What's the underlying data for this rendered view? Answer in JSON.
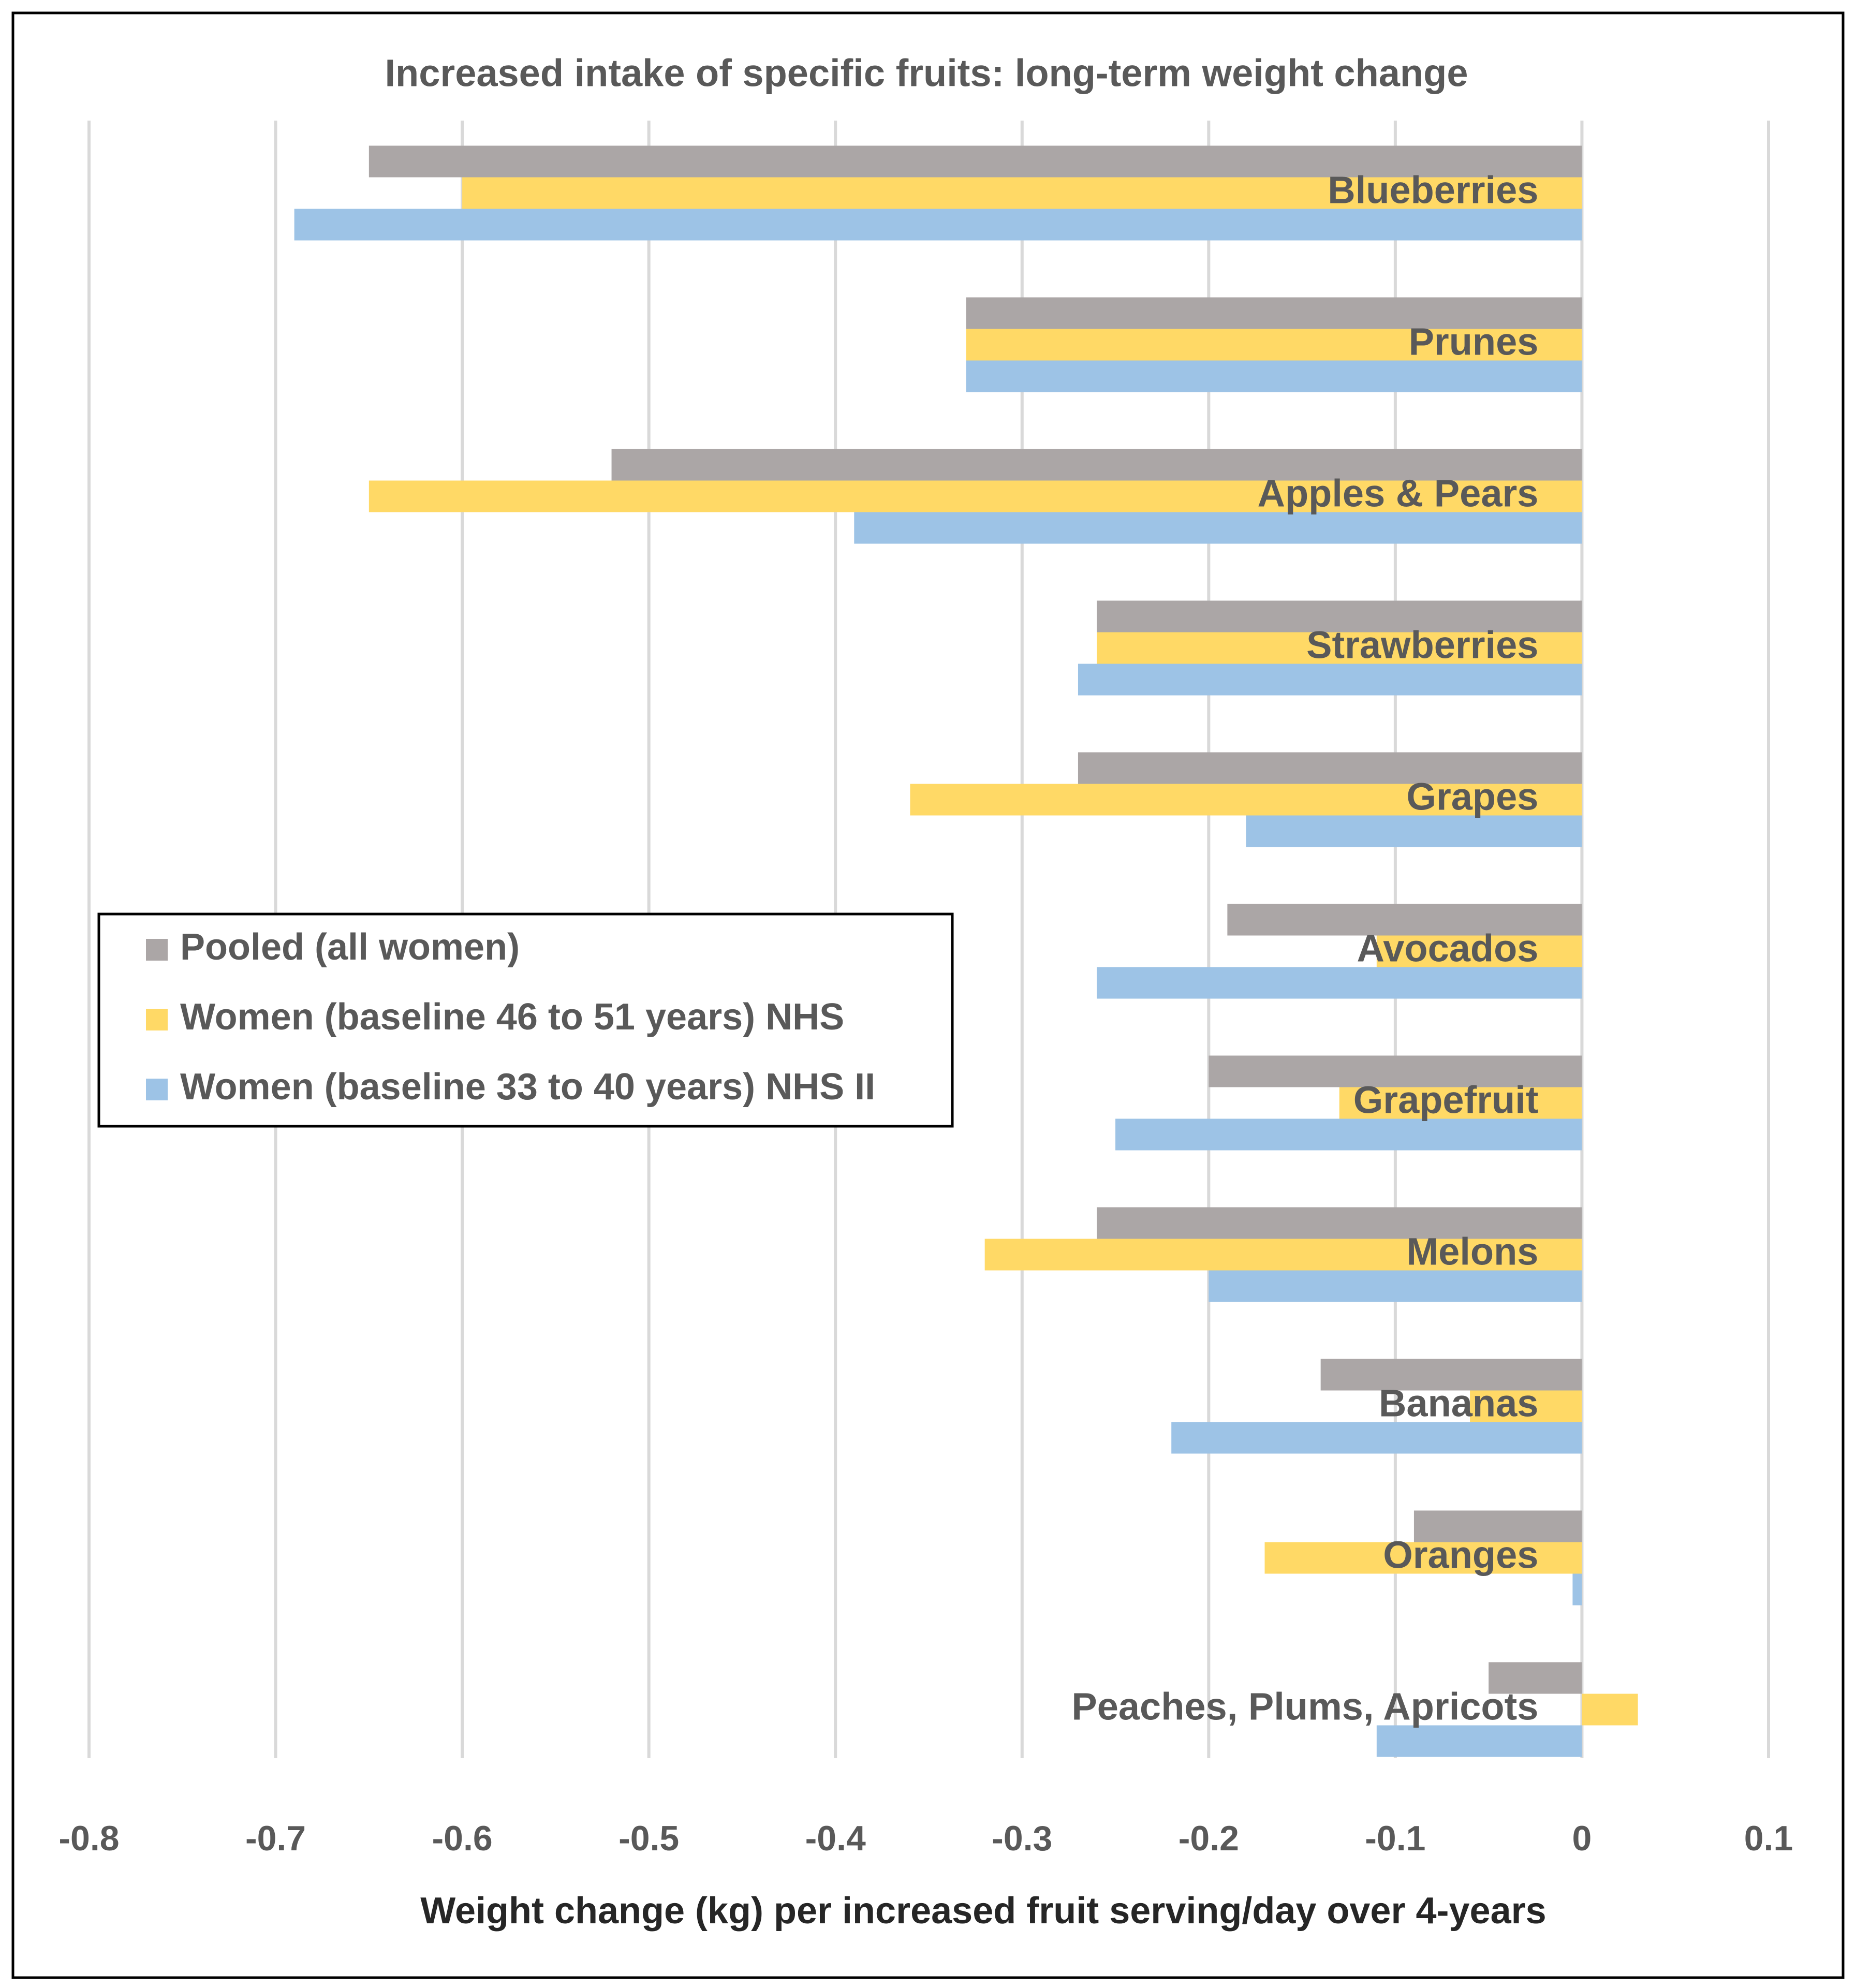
{
  "chart_data": {
    "type": "hbar",
    "title": "Increased intake of specific fruits: long-term weight change",
    "x_label": "Weight change (kg) per increased fruit serving/day over 4-years",
    "categories": [
      "Blueberries",
      "Prunes",
      "Apples & Pears",
      "Strawberries",
      "Grapes",
      "Avocados",
      "Grapefruit",
      "Melons",
      "Bananas",
      "Oranges",
      "Peaches, Plums, Apricots"
    ],
    "series": [
      {
        "name": "Pooled (all women)",
        "color": "#aba6a6",
        "values": [
          -0.65,
          -0.33,
          -0.52,
          -0.26,
          -0.27,
          -0.19,
          -0.2,
          -0.26,
          -0.14,
          -0.09,
          -0.05
        ]
      },
      {
        "name": "Women (baseline 46 to 51 years) NHS",
        "color": "#ffd966",
        "values": [
          -0.6,
          -0.33,
          -0.65,
          -0.26,
          -0.36,
          -0.11,
          -0.13,
          -0.32,
          -0.06,
          -0.17,
          0.03
        ]
      },
      {
        "name": "Women (baseline 33 to 40 years) NHS II",
        "color": "#9dc3e6",
        "values": [
          -0.69,
          -0.33,
          -0.39,
          -0.27,
          -0.18,
          -0.26,
          -0.25,
          -0.2,
          -0.22,
          -0.005,
          -0.11
        ]
      }
    ],
    "xlim": [
      -0.8,
      0.1
    ],
    "xticks": [
      -0.8,
      -0.7,
      -0.6,
      -0.5,
      -0.4,
      -0.3,
      -0.2,
      -0.1,
      0,
      0.1
    ],
    "grid": true,
    "legend_position": "left"
  }
}
